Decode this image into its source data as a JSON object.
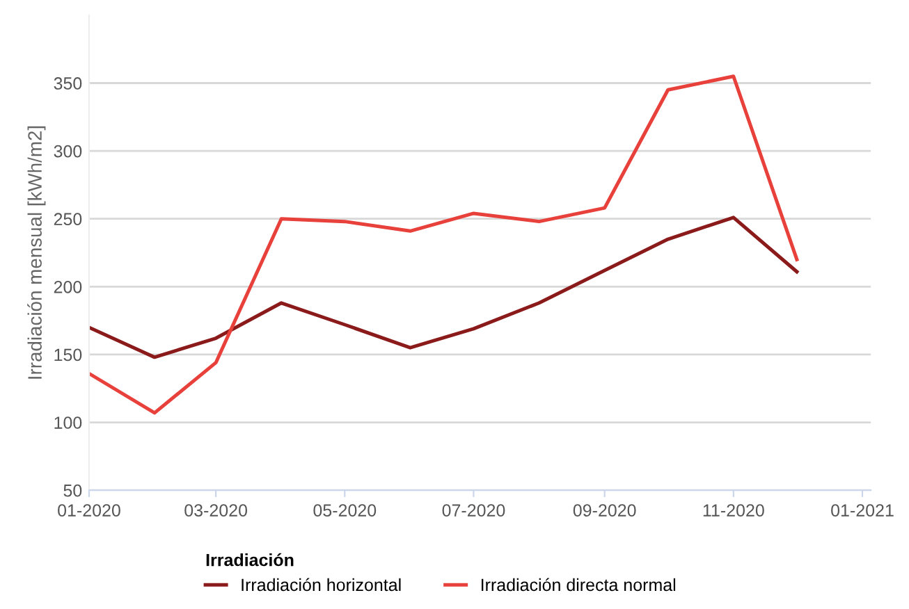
{
  "chart_data": {
    "type": "line",
    "ylabel": "Irradiación mensual [kWh/m2]",
    "legend_title": "Irradiación",
    "x": [
      "2020-01",
      "2020-02",
      "2020-03",
      "2020-04",
      "2020-05",
      "2020-06",
      "2020-07",
      "2020-08",
      "2020-09",
      "2020-10",
      "2020-11",
      "2020-12"
    ],
    "series": [
      {
        "name": "Irradiación horizontal",
        "color": "#8b1a1a",
        "values": [
          170,
          148,
          162,
          188,
          172,
          155,
          169,
          188,
          212,
          235,
          251,
          211
        ]
      },
      {
        "name": "Irradiación directa normal",
        "color": "#e8403a",
        "values": [
          136,
          107,
          144,
          250,
          248,
          241,
          254,
          248,
          258,
          345,
          355,
          220
        ]
      }
    ],
    "xlim": [
      "2020-01-01",
      "2021-01-05"
    ],
    "xticks": [
      {
        "value": "2020-01",
        "label": "01-2020"
      },
      {
        "value": "2020-03",
        "label": "03-2020"
      },
      {
        "value": "2020-05",
        "label": "05-2020"
      },
      {
        "value": "2020-07",
        "label": "07-2020"
      },
      {
        "value": "2020-09",
        "label": "09-2020"
      },
      {
        "value": "2020-11",
        "label": "11-2020"
      },
      {
        "value": "2021-01",
        "label": "01-2021"
      }
    ],
    "ylim": [
      50,
      400
    ],
    "yticks": [
      50,
      100,
      150,
      200,
      250,
      300,
      350
    ],
    "grid": "y",
    "legend": "bottom",
    "marker": "none",
    "line_style": "solid"
  }
}
